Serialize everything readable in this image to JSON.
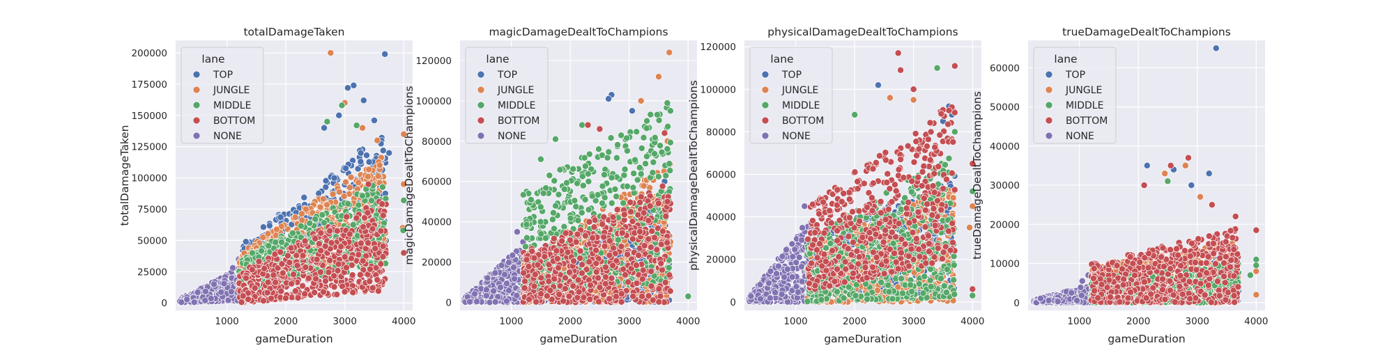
{
  "chart_data": [
    {
      "type": "scatter",
      "title": "totalDamageTaken",
      "xlabel": "gameDuration",
      "ylabel": "totalDamageTaken",
      "xlim": [
        130,
        4150
      ],
      "ylim": [
        -6000,
        210000
      ],
      "xticks": [
        1000,
        2000,
        3000,
        4000
      ],
      "yticks": [
        0,
        25000,
        50000,
        75000,
        100000,
        125000,
        150000,
        175000,
        200000
      ],
      "grid": true,
      "legend": {
        "title": "lane",
        "placement": "top-left"
      },
      "series": [
        {
          "name": "TOP",
          "color": "#4c72b0",
          "band": {
            "x": [
              1200,
              3700
            ],
            "y_low": [
              15000,
              40000
            ],
            "y_high": [
              45000,
              140000
            ]
          },
          "points": [
            [
              3680,
              199000
            ],
            [
              3150,
              174000
            ],
            [
              3050,
              172000
            ],
            [
              3320,
              162000
            ],
            [
              2900,
              150000
            ],
            [
              3500,
              146000
            ],
            [
              2650,
              140000
            ],
            [
              3750,
              120000
            ]
          ]
        },
        {
          "name": "JUNGLE",
          "color": "#dd8452",
          "band": {
            "x": [
              1200,
              3700
            ],
            "y_low": [
              15000,
              35000
            ],
            "y_high": [
              40000,
              120000
            ]
          },
          "points": [
            [
              2760,
              200000
            ],
            [
              3000,
              160000
            ],
            [
              3550,
              130000
            ],
            [
              4000,
              135000
            ],
            [
              3300,
              140000
            ],
            [
              4000,
              95000
            ],
            [
              3980,
              60000
            ]
          ]
        },
        {
          "name": "MIDDLE",
          "color": "#55a868",
          "band": {
            "x": [
              1200,
              3700
            ],
            "y_low": [
              10000,
              30000
            ],
            "y_high": [
              35000,
              100000
            ]
          },
          "points": [
            [
              2950,
              158000
            ],
            [
              2700,
              145000
            ],
            [
              3200,
              142000
            ],
            [
              4000,
              82000
            ],
            [
              3990,
              58000
            ]
          ]
        },
        {
          "name": "BOTTOM",
          "color": "#c44e52",
          "band": {
            "x": [
              1200,
              3700
            ],
            "y_low": [
              0,
              10000
            ],
            "y_high": [
              25000,
              85000
            ]
          },
          "points": [
            [
              3400,
              95000
            ],
            [
              3650,
              70000
            ],
            [
              4000,
              40000
            ]
          ]
        },
        {
          "name": "NONE",
          "color": "#8172b2",
          "band": {
            "x": [
              200,
              1300
            ],
            "y_low": [
              0,
              2000
            ],
            "y_high": [
              3000,
              30000
            ]
          },
          "points": [
            [
              1200,
              35000
            ],
            [
              1100,
              28000
            ]
          ]
        }
      ]
    },
    {
      "type": "scatter",
      "title": "magicDamageDealtToChampions",
      "xlabel": "gameDuration",
      "ylabel": "magicDamageDealtToChampions",
      "xlim": [
        130,
        4150
      ],
      "ylim": [
        -4000,
        130000
      ],
      "xticks": [
        1000,
        2000,
        3000,
        4000
      ],
      "yticks": [
        0,
        20000,
        40000,
        60000,
        80000,
        100000,
        120000
      ],
      "grid": true,
      "legend": {
        "title": "lane",
        "placement": "top-left"
      },
      "series": [
        {
          "name": "TOP",
          "color": "#4c72b0",
          "band": {
            "x": [
              1200,
              3700
            ],
            "y_low": [
              0,
              0
            ],
            "y_high": [
              15000,
              50000
            ]
          },
          "points": [
            [
              2700,
              103000
            ],
            [
              2650,
              101000
            ],
            [
              3050,
              95000
            ],
            [
              3650,
              98000
            ],
            [
              3600,
              60000
            ]
          ]
        },
        {
          "name": "JUNGLE",
          "color": "#dd8452",
          "band": {
            "x": [
              1200,
              3700
            ],
            "y_low": [
              0,
              0
            ],
            "y_high": [
              20000,
              70000
            ]
          },
          "points": [
            [
              3680,
              124000
            ],
            [
              3500,
              112000
            ],
            [
              3200,
              100000
            ],
            [
              3650,
              80000
            ],
            [
              3700,
              30000
            ]
          ]
        },
        {
          "name": "MIDDLE",
          "color": "#55a868",
          "band": {
            "x": [
              1200,
              3700
            ],
            "y_low": [
              5000,
              10000
            ],
            "y_high": [
              55000,
              100000
            ]
          },
          "points": [
            [
              1500,
              71000
            ],
            [
              1750,
              81000
            ],
            [
              2200,
              88000
            ],
            [
              3700,
              95000
            ],
            [
              4000,
              3000
            ]
          ]
        },
        {
          "name": "BOTTOM",
          "color": "#c44e52",
          "band": {
            "x": [
              1200,
              3700
            ],
            "y_low": [
              0,
              0
            ],
            "y_high": [
              25000,
              60000
            ]
          },
          "points": [
            [
              2300,
              88000
            ],
            [
              2500,
              86000
            ],
            [
              3600,
              84000
            ],
            [
              3650,
              50000
            ]
          ]
        },
        {
          "name": "NONE",
          "color": "#8172b2",
          "band": {
            "x": [
              200,
              1300
            ],
            "y_low": [
              0,
              0
            ],
            "y_high": [
              2000,
              32000
            ]
          },
          "points": [
            [
              1100,
              35000
            ],
            [
              1200,
              30000
            ]
          ]
        }
      ]
    },
    {
      "type": "scatter",
      "title": "physicalDamageDealtToChampions",
      "xlabel": "gameDuration",
      "ylabel": "physicalDamageDealtToChampions",
      "xlim": [
        130,
        4150
      ],
      "ylim": [
        -4000,
        123000
      ],
      "xticks": [
        1000,
        2000,
        3000,
        4000
      ],
      "yticks": [
        0,
        20000,
        40000,
        60000,
        80000,
        100000,
        120000
      ],
      "grid": true,
      "legend": {
        "title": "lane",
        "placement": "top-left"
      },
      "series": [
        {
          "name": "TOP",
          "color": "#4c72b0",
          "band": {
            "x": [
              1200,
              3700
            ],
            "y_low": [
              0,
              3000
            ],
            "y_high": [
              30000,
              60000
            ]
          },
          "points": [
            [
              2400,
              102000
            ],
            [
              3600,
              92000
            ],
            [
              3650,
              88000
            ],
            [
              3500,
              85000
            ]
          ]
        },
        {
          "name": "JUNGLE",
          "color": "#dd8452",
          "band": {
            "x": [
              1200,
              3700
            ],
            "y_low": [
              0,
              0
            ],
            "y_high": [
              25000,
              55000
            ]
          },
          "points": [
            [
              2600,
              96000
            ],
            [
              3000,
              95000
            ],
            [
              4000,
              45000
            ],
            [
              3950,
              35000
            ]
          ]
        },
        {
          "name": "MIDDLE",
          "color": "#55a868",
          "band": {
            "x": [
              1200,
              3700
            ],
            "y_low": [
              0,
              2000
            ],
            "y_high": [
              30000,
              70000
            ]
          },
          "points": [
            [
              3400,
              110000
            ],
            [
              2000,
              88000
            ],
            [
              3700,
              80000
            ],
            [
              4000,
              52000
            ],
            [
              4000,
              3000
            ]
          ]
        },
        {
          "name": "BOTTOM",
          "color": "#c44e52",
          "band": {
            "x": [
              1200,
              3700
            ],
            "y_low": [
              5000,
              20000
            ],
            "y_high": [
              45000,
              95000
            ]
          },
          "points": [
            [
              2740,
              117000
            ],
            [
              2780,
              109000
            ],
            [
              3700,
              111000
            ],
            [
              3600,
              90000
            ],
            [
              3000,
              100000
            ],
            [
              4000,
              65000
            ],
            [
              4000,
              6000
            ]
          ]
        },
        {
          "name": "NONE",
          "color": "#8172b2",
          "band": {
            "x": [
              200,
              1300
            ],
            "y_low": [
              0,
              0
            ],
            "y_high": [
              2000,
              42000
            ]
          },
          "points": [
            [
              1150,
              45000
            ]
          ]
        }
      ]
    },
    {
      "type": "scatter",
      "title": "trueDamageDealtToChampions",
      "xlabel": "gameDuration",
      "ylabel": "trueDamageDealtToChampions",
      "xlim": [
        130,
        4150
      ],
      "ylim": [
        -2000,
        67000
      ],
      "xticks": [
        1000,
        2000,
        3000,
        4000
      ],
      "yticks": [
        0,
        10000,
        20000,
        30000,
        40000,
        50000,
        60000
      ],
      "grid": true,
      "legend": {
        "title": "lane",
        "placement": "top-left"
      },
      "series": [
        {
          "name": "TOP",
          "color": "#4c72b0",
          "band": {
            "x": [
              1200,
              3700
            ],
            "y_low": [
              0,
              0
            ],
            "y_high": [
              6000,
              12000
            ]
          },
          "points": [
            [
              3320,
              65000
            ],
            [
              2150,
              35000
            ],
            [
              2600,
              34000
            ],
            [
              3200,
              33000
            ],
            [
              2900,
              30000
            ]
          ]
        },
        {
          "name": "JUNGLE",
          "color": "#dd8452",
          "band": {
            "x": [
              1200,
              3700
            ],
            "y_low": [
              0,
              0
            ],
            "y_high": [
              9000,
              16000
            ]
          },
          "points": [
            [
              2800,
              35000
            ],
            [
              2450,
              33000
            ],
            [
              3050,
              27000
            ],
            [
              4000,
              8000
            ],
            [
              4000,
              2000
            ]
          ]
        },
        {
          "name": "MIDDLE",
          "color": "#55a868",
          "band": {
            "x": [
              1200,
              3700
            ],
            "y_low": [
              0,
              0
            ],
            "y_high": [
              6000,
              10000
            ]
          },
          "points": [
            [
              2500,
              31000
            ],
            [
              4000,
              11000
            ],
            [
              4000,
              9500
            ],
            [
              3900,
              7000
            ]
          ]
        },
        {
          "name": "BOTTOM",
          "color": "#c44e52",
          "band": {
            "x": [
              1200,
              3700
            ],
            "y_low": [
              0,
              0
            ],
            "y_high": [
              10000,
              19000
            ]
          },
          "points": [
            [
              2850,
              37000
            ],
            [
              2550,
              35000
            ],
            [
              2100,
              30000
            ],
            [
              3250,
              25000
            ],
            [
              4000,
              18500
            ],
            [
              3650,
              22000
            ]
          ]
        },
        {
          "name": "NONE",
          "color": "#8172b2",
          "band": {
            "x": [
              200,
              1300
            ],
            "y_low": [
              0,
              0
            ],
            "y_high": [
              600,
              5000
            ]
          },
          "points": [
            [
              1150,
              7000
            ],
            [
              1050,
              5500
            ]
          ]
        }
      ]
    }
  ]
}
